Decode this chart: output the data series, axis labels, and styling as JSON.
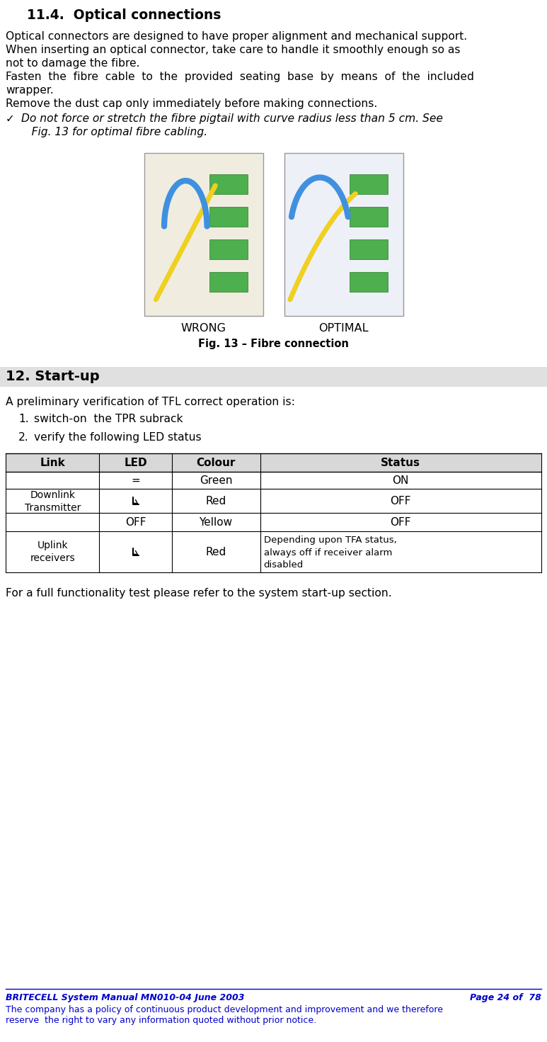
{
  "title_section": "11.4.  Optical connections",
  "para1": "Optical connectors are designed to have proper alignment and mechanical support.",
  "para2a": "When inserting an optical connector, take care to handle it smoothly enough so as",
  "para2b": "not to damage the fibre.",
  "para3a": "Fasten  the  fibre  cable  to  the  provided  seating  base  by  means  of  the  included",
  "para3b": "wrapper.",
  "para4": "Remove the dust cap only immediately before making connections.",
  "bullet_line1": "Do not force or stretch the fibre pigtail with curve radius less than 5 cm. See",
  "bullet_line2": "   Fig. 13 for optimal fibre cabling.",
  "fig_caption": "Fig. 13 – Fibre connection",
  "fig_labels": [
    "WRONG",
    "OPTIMAL"
  ],
  "section2_title": "12. Start-up",
  "section2_intro": "A preliminary verification of TFL correct operation is:",
  "list_item1": "switch-on  the TPR subrack",
  "list_item2": "verify the following LED status",
  "table_headers": [
    "Link",
    "LED",
    "Colour",
    "Status"
  ],
  "footer_note": "For a full functionality test please refer to the system start-up section.",
  "footer_line1": "BRITECELL System Manual MN010-04 June 2003",
  "footer_line1_right": "Page 24 of  78",
  "footer_line2a": "The company has a policy of continuous product development and improvement and we therefore",
  "footer_line2b": "reserve  the right to vary any information quoted without prior notice.",
  "footer_color": "#0000CC",
  "bg_color": "#ffffff",
  "section_bar_color": "#e0e0e0",
  "table_header_color": "#d8d8d8"
}
